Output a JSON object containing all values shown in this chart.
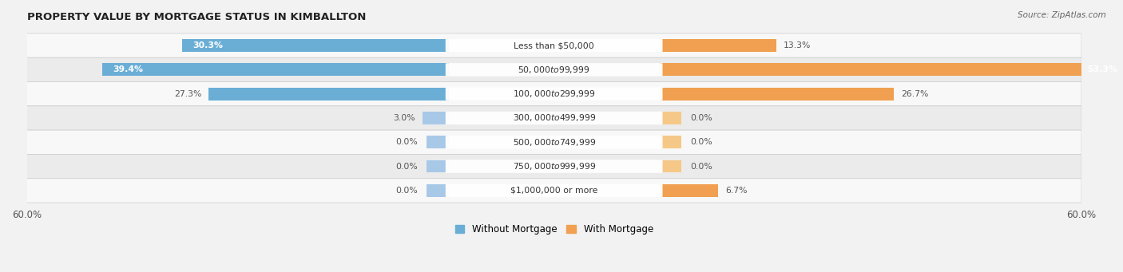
{
  "title": "PROPERTY VALUE BY MORTGAGE STATUS IN KIMBALLTON",
  "source": "Source: ZipAtlas.com",
  "categories": [
    "Less than $50,000",
    "$50,000 to $99,999",
    "$100,000 to $299,999",
    "$300,000 to $499,999",
    "$500,000 to $749,999",
    "$750,000 to $999,999",
    "$1,000,000 or more"
  ],
  "without_mortgage": [
    30.3,
    39.4,
    27.3,
    3.0,
    0.0,
    0.0,
    0.0
  ],
  "with_mortgage": [
    13.3,
    53.3,
    26.7,
    0.0,
    0.0,
    0.0,
    6.7
  ],
  "color_without_large": "#6aaed6",
  "color_without_small": "#a8c8e8",
  "color_with_large": "#f0a050",
  "color_with_small": "#f5c888",
  "xlim": 60.0,
  "legend_without": "Without Mortgage",
  "legend_with": "With Mortgage",
  "bar_height": 0.52,
  "bg_color": "#f2f2f2",
  "row_bg_light": "#f8f8f8",
  "row_bg_dark": "#ebebeb"
}
